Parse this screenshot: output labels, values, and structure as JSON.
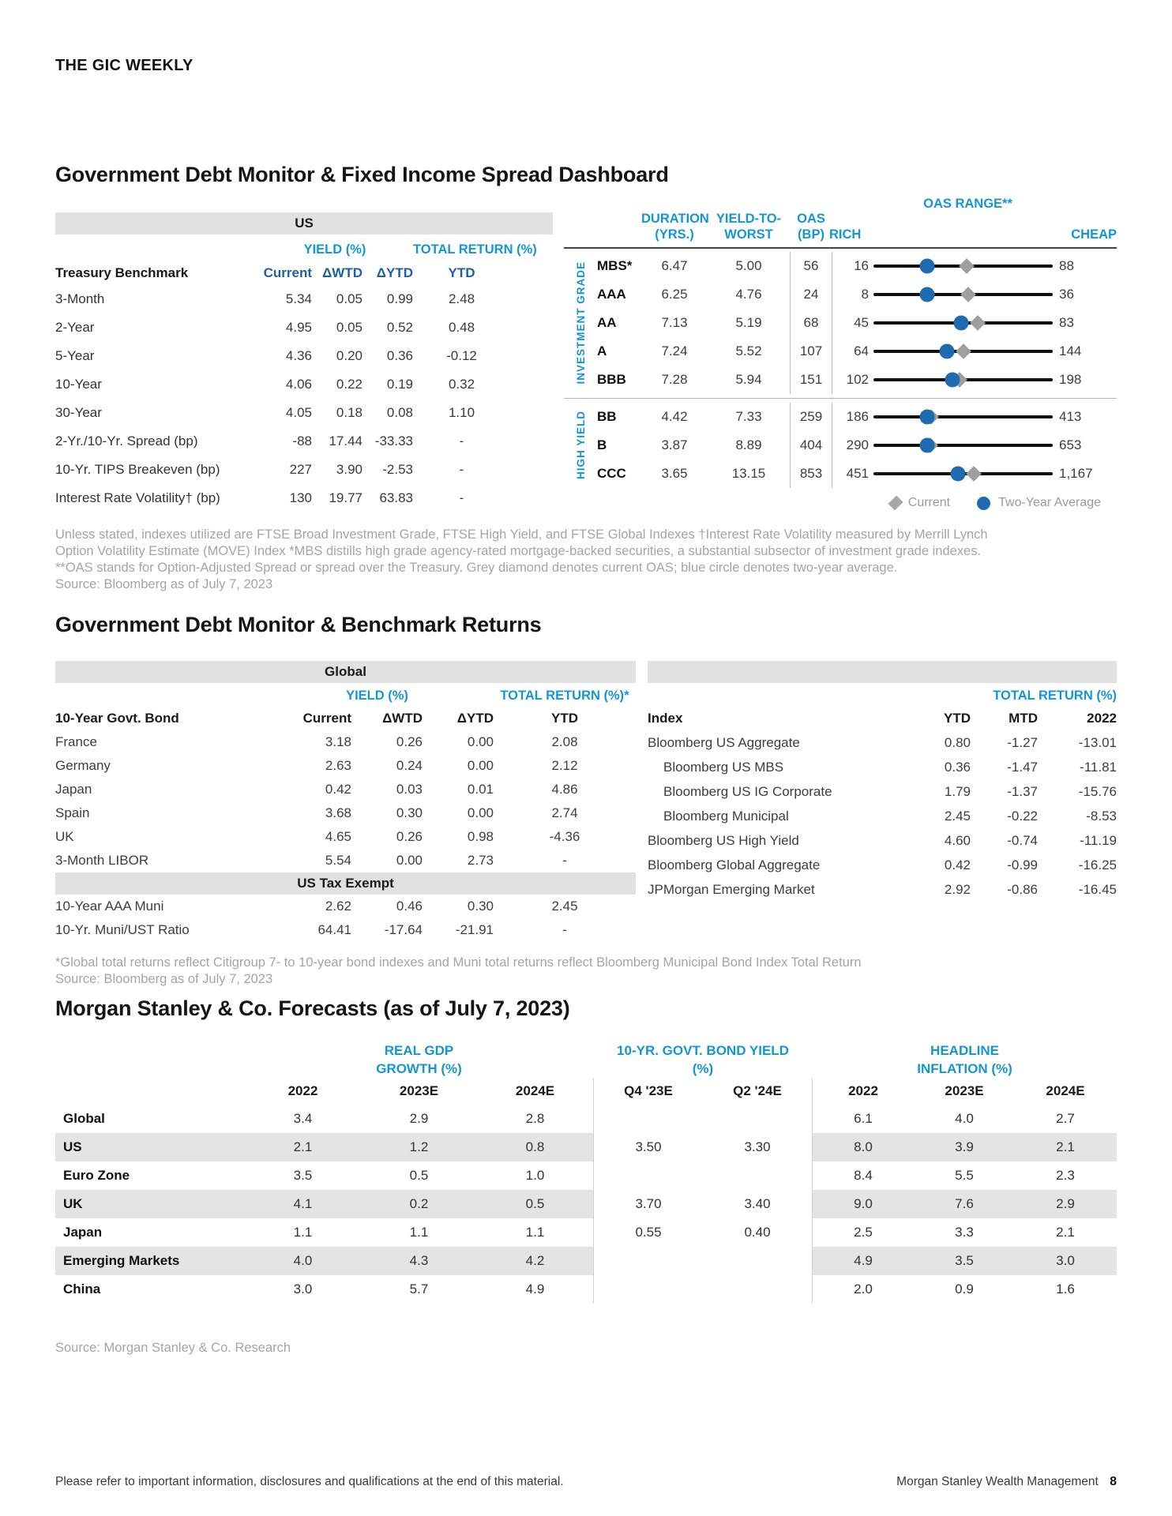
{
  "meta": {
    "brand": "THE GIC WEEKLY",
    "footer_left": "Please refer to important information, disclosures and qualifications at the end of this material.",
    "footer_right": "Morgan Stanley Wealth Management",
    "page_number": "8"
  },
  "colors": {
    "accent_cyan": "#1496d5",
    "header_blue": "#1d5fa9",
    "marker_blue": "#1e6bb2",
    "marker_grey": "#9f9f9f",
    "band_grey": "#e1e1e1",
    "stripe_grey": "#e4e4e4"
  },
  "s1": {
    "title": "Government Debt Monitor & Fixed Income Spread Dashboard",
    "us": {
      "band": "US",
      "yield_header": "YIELD (%)",
      "return_header": "TOTAL RETURN (%)",
      "columns": {
        "name": "Treasury Benchmark",
        "current": "Current",
        "wtd": "ΔWTD",
        "ytd": "ΔYTD",
        "ret": "YTD"
      },
      "rows": [
        {
          "name": "3-Month",
          "current": "5.34",
          "wtd": "0.05",
          "ytd": "0.99",
          "ret": "2.48"
        },
        {
          "name": "2-Year",
          "current": "4.95",
          "wtd": "0.05",
          "ytd": "0.52",
          "ret": "0.48"
        },
        {
          "name": "5-Year",
          "current": "4.36",
          "wtd": "0.20",
          "ytd": "0.36",
          "ret": "-0.12"
        },
        {
          "name": "10-Year",
          "current": "4.06",
          "wtd": "0.22",
          "ytd": "0.19",
          "ret": "0.32"
        },
        {
          "name": "30-Year",
          "current": "4.05",
          "wtd": "0.18",
          "ytd": "0.08",
          "ret": "1.10"
        },
        {
          "name": "2-Yr./10-Yr. Spread (bp)",
          "current": "-88",
          "wtd": "17.44",
          "ytd": "-33.33",
          "ret": "-"
        },
        {
          "name": "10-Yr. TIPS Breakeven (bp)",
          "current": "227",
          "wtd": "3.90",
          "ytd": "-2.53",
          "ret": "-"
        },
        {
          "name": "Interest Rate Volatility† (bp)",
          "current": "130",
          "wtd": "19.77",
          "ytd": "63.83",
          "ret": "-"
        }
      ]
    },
    "dashboard": {
      "headers": {
        "duration1": "DURATION",
        "duration2": "(YRS.)",
        "ytw1": "YIELD-TO-",
        "ytw2": "WORST",
        "oas1": "OAS",
        "oas2": "(BP)",
        "rich": "RICH",
        "range": "OAS RANGE**",
        "cheap": "CHEAP"
      },
      "groups": [
        {
          "label": "INVESTMENT GRADE",
          "rows": [
            {
              "name": "MBS*",
              "dur": "6.47",
              "ytw": "5.00",
              "oas": "56",
              "min": "16",
              "max": "88",
              "avg": 0.3,
              "cur": 0.52
            },
            {
              "name": "AAA",
              "dur": "6.25",
              "ytw": "4.76",
              "oas": "24",
              "min": "8",
              "max": "36",
              "avg": 0.3,
              "cur": 0.53
            },
            {
              "name": "AA",
              "dur": "7.13",
              "ytw": "5.19",
              "oas": "68",
              "min": "45",
              "max": "83",
              "avg": 0.49,
              "cur": 0.58
            },
            {
              "name": "A",
              "dur": "7.24",
              "ytw": "5.52",
              "oas": "107",
              "min": "64",
              "max": "144",
              "avg": 0.41,
              "cur": 0.5
            },
            {
              "name": "BBB",
              "dur": "7.28",
              "ytw": "5.94",
              "oas": "151",
              "min": "102",
              "max": "198",
              "avg": 0.44,
              "cur": 0.48
            }
          ]
        },
        {
          "label": "HIGH YIELD",
          "rows": [
            {
              "name": "BB",
              "dur": "4.42",
              "ytw": "7.33",
              "oas": "259",
              "min": "186",
              "max": "413",
              "avg": 0.3,
              "cur": 0.32
            },
            {
              "name": "B",
              "dur": "3.87",
              "ytw": "8.89",
              "oas": "404",
              "min": "290",
              "max": "653",
              "avg": 0.3,
              "cur": 0.315
            },
            {
              "name": "CCC",
              "dur": "3.65",
              "ytw": "13.15",
              "oas": "853",
              "min": "451",
              "max": "1,167",
              "avg": 0.47,
              "cur": 0.56
            }
          ]
        }
      ],
      "legend": {
        "current": "Current",
        "average": "Two-Year Average"
      }
    },
    "footnote_lines": [
      "Unless stated, indexes utilized are FTSE Broad Investment Grade, FTSE High Yield, and FTSE Global Indexes †Interest Rate Volatility measured by Merrill Lynch",
      "Option Volatility Estimate (MOVE) Index *MBS distills high grade agency-rated mortgage-backed securities, a substantial subsector of investment grade indexes.",
      "**OAS stands for Option-Adjusted Spread or spread over the Treasury. Grey diamond denotes current OAS; blue circle denotes two-year average.",
      "Source: Bloomberg as of July 7, 2023"
    ]
  },
  "s2": {
    "title": "Government Debt Monitor & Benchmark Returns",
    "global": {
      "band": "Global",
      "yield_header": "YIELD (%)",
      "return_header": "TOTAL RETURN (%)*",
      "columns": {
        "name": "10-Year Govt. Bond",
        "current": "Current",
        "wtd": "ΔWTD",
        "ytd": "ΔYTD",
        "ret": "YTD"
      },
      "rows": [
        {
          "name": "France",
          "current": "3.18",
          "wtd": "0.26",
          "ytd": "0.00",
          "ret": "2.08"
        },
        {
          "name": "Germany",
          "current": "2.63",
          "wtd": "0.24",
          "ytd": "0.00",
          "ret": "2.12"
        },
        {
          "name": "Japan",
          "current": "0.42",
          "wtd": "0.03",
          "ytd": "0.01",
          "ret": "4.86"
        },
        {
          "name": "Spain",
          "current": "3.68",
          "wtd": "0.30",
          "ytd": "0.00",
          "ret": "2.74"
        },
        {
          "name": "UK",
          "current": "4.65",
          "wtd": "0.26",
          "ytd": "0.98",
          "ret": "-4.36"
        },
        {
          "name": "3-Month LIBOR",
          "current": "5.54",
          "wtd": "0.00",
          "ytd": "2.73",
          "ret": "-"
        }
      ],
      "band2": "US Tax Exempt",
      "rows2": [
        {
          "name": "10-Year AAA Muni",
          "current": "2.62",
          "wtd": "0.46",
          "ytd": "0.30",
          "ret": "2.45"
        },
        {
          "name": "10-Yr. Muni/UST Ratio",
          "current": "64.41",
          "wtd": "-17.64",
          "ytd": "-21.91",
          "ret": "-"
        }
      ]
    },
    "indices": {
      "return_header": "TOTAL RETURN (%)",
      "columns": {
        "name": "Index",
        "ytd": "YTD",
        "mtd": "MTD",
        "y2022": "2022"
      },
      "rows": [
        {
          "name": "Bloomberg US Aggregate",
          "indent": false,
          "ytd": "0.80",
          "mtd": "-1.27",
          "y2022": "-13.01"
        },
        {
          "name": "Bloomberg US MBS",
          "indent": true,
          "ytd": "0.36",
          "mtd": "-1.47",
          "y2022": "-11.81"
        },
        {
          "name": "Bloomberg US IG Corporate",
          "indent": true,
          "ytd": "1.79",
          "mtd": "-1.37",
          "y2022": "-15.76"
        },
        {
          "name": "Bloomberg Municipal",
          "indent": true,
          "ytd": "2.45",
          "mtd": "-0.22",
          "y2022": "-8.53"
        },
        {
          "name": "Bloomberg US High Yield",
          "indent": false,
          "ytd": "4.60",
          "mtd": "-0.74",
          "y2022": "-11.19"
        },
        {
          "name": "Bloomberg Global Aggregate",
          "indent": false,
          "ytd": "0.42",
          "mtd": "-0.99",
          "y2022": "-16.25"
        },
        {
          "name": "JPMorgan Emerging Market",
          "indent": false,
          "ytd": "2.92",
          "mtd": "-0.86",
          "y2022": "-16.45"
        }
      ]
    },
    "footnote_lines": [
      "*Global total returns reflect Citigroup 7- to 10-year bond indexes and Muni total returns reflect Bloomberg Municipal Bond Index Total Return",
      "Source: Bloomberg as of July 7, 2023"
    ]
  },
  "s3": {
    "title": "Morgan Stanley & Co. Forecasts (as of July 7, 2023)",
    "group_headers": {
      "gdp1": "REAL GDP",
      "gdp2": "GROWTH (%)",
      "bond1": "10-YR. GOVT. BOND YIELD",
      "bond2": "(%)",
      "inf1": "HEADLINE",
      "inf2": "INFLATION (%)"
    },
    "year_headers": {
      "g1": "2022",
      "g2": "2023E",
      "g3": "2024E",
      "b1": "Q4 '23E",
      "b2": "Q2 '24E",
      "i1": "2022",
      "i2": "2023E",
      "i3": "2024E"
    },
    "rows": [
      {
        "name": "Global",
        "g1": "3.4",
        "g2": "2.9",
        "g3": "2.8",
        "b1": "",
        "b2": "",
        "i1": "6.1",
        "i2": "4.0",
        "i3": "2.7"
      },
      {
        "name": "US",
        "g1": "2.1",
        "g2": "1.2",
        "g3": "0.8",
        "b1": "3.50",
        "b2": "3.30",
        "i1": "8.0",
        "i2": "3.9",
        "i3": "2.1"
      },
      {
        "name": "Euro Zone",
        "g1": "3.5",
        "g2": "0.5",
        "g3": "1.0",
        "b1": "",
        "b2": "",
        "i1": "8.4",
        "i2": "5.5",
        "i3": "2.3"
      },
      {
        "name": "UK",
        "g1": "4.1",
        "g2": "0.2",
        "g3": "0.5",
        "b1": "3.70",
        "b2": "3.40",
        "i1": "9.0",
        "i2": "7.6",
        "i3": "2.9"
      },
      {
        "name": "Japan",
        "g1": "1.1",
        "g2": "1.1",
        "g3": "1.1",
        "b1": "0.55",
        "b2": "0.40",
        "i1": "2.5",
        "i2": "3.3",
        "i3": "2.1"
      },
      {
        "name": "Emerging Markets",
        "g1": "4.0",
        "g2": "4.3",
        "g3": "4.2",
        "b1": "",
        "b2": "",
        "i1": "4.9",
        "i2": "3.5",
        "i3": "3.0"
      },
      {
        "name": "China",
        "g1": "3.0",
        "g2": "5.7",
        "g3": "4.9",
        "b1": "",
        "b2": "",
        "i1": "2.0",
        "i2": "0.9",
        "i3": "1.6"
      }
    ],
    "source": "Source: Morgan Stanley & Co. Research"
  }
}
